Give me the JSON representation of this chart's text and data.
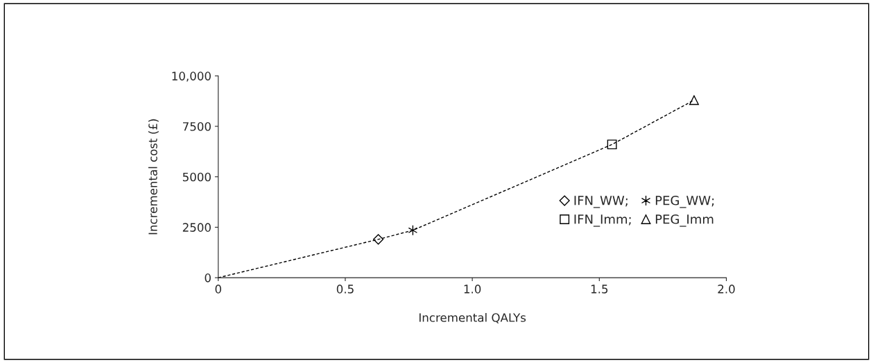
{
  "chart_data": {
    "type": "scatter",
    "xlabel": "Incremental QALYs",
    "ylabel": "Incremental cost (£)",
    "xlim": [
      0,
      2.0
    ],
    "xticks": [
      0,
      0.5,
      {
        "value": 1.0,
        "label": "1.0"
      },
      1.5,
      {
        "value": 2.0,
        "label": "2.0"
      }
    ],
    "ylim": [
      0,
      10000
    ],
    "yticks": [
      0,
      2500,
      5000,
      7500,
      {
        "value": 10000,
        "label": "10,000"
      }
    ],
    "grid": false,
    "legend": "right",
    "series": [
      {
        "type": "line",
        "color": "#000000",
        "line_style": "dashed",
        "marker": "none",
        "x": [
          0,
          0.63,
          0.766,
          1.55,
          1.873
        ],
        "values": [
          0,
          1900,
          2350,
          6600,
          8800
        ]
      },
      {
        "name": "IFN_WW;",
        "color": "#000000",
        "marker": "diamond",
        "x": [
          0.63
        ],
        "values": [
          1900
        ]
      },
      {
        "name": "PEG_WW;",
        "color": "#000000",
        "marker": "cross",
        "x": [
          0.766
        ],
        "values": [
          2350
        ]
      },
      {
        "name": "IFN_Imm;",
        "color": "#000000",
        "marker": "square",
        "x": [
          1.55
        ],
        "values": [
          6600
        ]
      },
      {
        "name": "PEG_Imm",
        "color": "#000000",
        "marker": "triangle",
        "x": [
          1.873
        ],
        "values": [
          8800
        ]
      }
    ]
  }
}
